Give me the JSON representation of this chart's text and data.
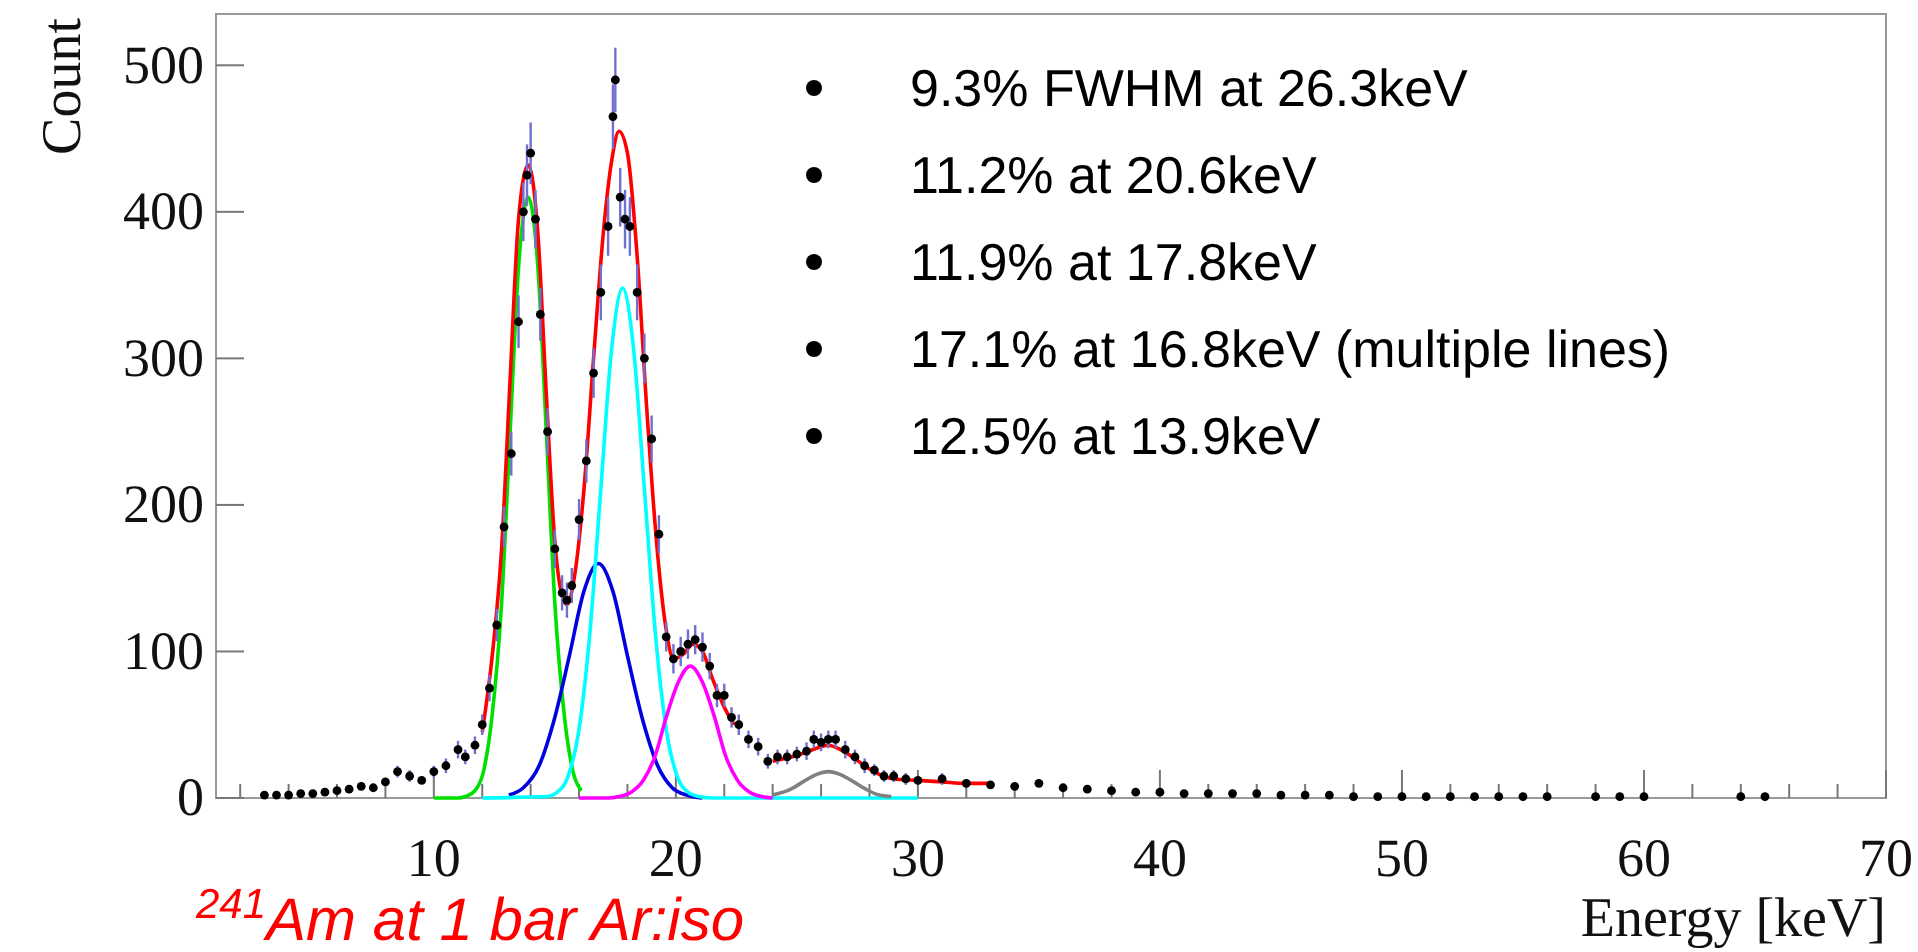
{
  "chart_data": {
    "type": "scatter",
    "xlabel": "Energy [keV]",
    "ylabel": "Count",
    "xlim": [
      1,
      70
    ],
    "ylim": [
      0,
      535
    ],
    "xticks": [
      {
        "value": 2,
        "label": null
      },
      {
        "value": 4,
        "label": null
      },
      {
        "value": 6,
        "label": null
      },
      {
        "value": 8,
        "label": null
      },
      10,
      {
        "value": 12,
        "label": null
      },
      {
        "value": 14,
        "label": null
      },
      {
        "value": 16,
        "label": null
      },
      {
        "value": 18,
        "label": null
      },
      20,
      {
        "value": 22,
        "label": null
      },
      {
        "value": 24,
        "label": null
      },
      {
        "value": 26,
        "label": null
      },
      {
        "value": 28,
        "label": null
      },
      30,
      {
        "value": 32,
        "label": null
      },
      {
        "value": 34,
        "label": null
      },
      {
        "value": 36,
        "label": null
      },
      {
        "value": 38,
        "label": null
      },
      40,
      {
        "value": 42,
        "label": null
      },
      {
        "value": 44,
        "label": null
      },
      {
        "value": 46,
        "label": null
      },
      {
        "value": 48,
        "label": null
      },
      50,
      {
        "value": 52,
        "label": null
      },
      {
        "value": 54,
        "label": null
      },
      {
        "value": 56,
        "label": null
      },
      {
        "value": 58,
        "label": null
      },
      60,
      {
        "value": 62,
        "label": null
      },
      {
        "value": 64,
        "label": null
      },
      {
        "value": 66,
        "label": null
      },
      {
        "value": 68,
        "label": null
      },
      70
    ],
    "yticks": [
      0,
      100,
      200,
      300,
      400,
      500
    ],
    "grid": false,
    "annotations": [
      "9.3% FWHM at 26.3keV",
      "11.2% at 20.6keV",
      "11.9% at 17.8keV",
      "17.1% at 16.8keV (multiple lines)",
      "12.5% at 13.9keV",
      "$^{241}$Am at 1 bar Ar:iso"
    ],
    "series": [
      {
        "type": "scatter",
        "color": "#000000",
        "marker": "circle",
        "x": [
          3,
          3.5,
          4,
          4.5,
          5,
          5.5,
          6,
          6.5,
          7,
          7.5,
          8,
          8.5,
          9,
          9.5,
          10,
          10.5,
          11,
          11.3,
          11.7,
          12,
          12.3,
          12.6,
          12.9,
          13.2,
          13.5,
          13.7,
          13.85,
          14,
          14.2,
          14.4,
          14.7,
          15,
          15.3,
          15.5,
          15.7,
          16,
          16.3,
          16.6,
          16.9,
          17.2,
          17.4,
          17.5,
          17.7,
          17.9,
          18.1,
          18.4,
          18.7,
          19,
          19.3,
          19.6,
          19.9,
          20.2,
          20.5,
          20.8,
          21.1,
          21.4,
          21.7,
          22,
          22.3,
          22.6,
          23,
          23.4,
          23.8,
          24.2,
          24.6,
          25,
          25.4,
          25.7,
          26,
          26.3,
          26.6,
          27,
          27.4,
          27.8,
          28.2,
          28.6,
          29,
          29.5,
          30,
          31,
          32,
          33,
          34,
          35,
          36,
          37,
          38,
          39,
          40,
          41,
          42,
          43,
          44,
          45,
          46,
          47,
          48,
          49,
          50,
          51,
          52,
          53,
          54,
          55,
          56,
          58,
          59,
          60,
          64,
          65
        ],
        "values": [
          2,
          2,
          2,
          3,
          3,
          4,
          5,
          6,
          8,
          7,
          11,
          18,
          15,
          12,
          18,
          22,
          33,
          28,
          36,
          50,
          75,
          118,
          185,
          235,
          325,
          400,
          425,
          440,
          395,
          330,
          250,
          170,
          140,
          135,
          145,
          190,
          230,
          290,
          345,
          390,
          465,
          490,
          410,
          395,
          390,
          345,
          300,
          245,
          180,
          110,
          95,
          100,
          105,
          108,
          103,
          90,
          70,
          70,
          55,
          50,
          40,
          35,
          25,
          28,
          28,
          30,
          32,
          40,
          38,
          40,
          40,
          33,
          28,
          22,
          19,
          15,
          15,
          13,
          12,
          13,
          10,
          9,
          8,
          10,
          7,
          6,
          5,
          4,
          4,
          3,
          3,
          3,
          3,
          2,
          2,
          2,
          1,
          1,
          1,
          1,
          1,
          1,
          1,
          1,
          1,
          1,
          1,
          1,
          1,
          1
        ],
        "errors": [
          1,
          1,
          1,
          2,
          2,
          2,
          2,
          2,
          null,
          null,
          null,
          4,
          4,
          null,
          4,
          5,
          6,
          5,
          6,
          7,
          9,
          11,
          14,
          15,
          18,
          20,
          21,
          21,
          20,
          18,
          16,
          13,
          12,
          12,
          12,
          14,
          15,
          17,
          19,
          20,
          22,
          22,
          20,
          20,
          20,
          19,
          17,
          16,
          13,
          10,
          10,
          10,
          10,
          10,
          10,
          9,
          8,
          8,
          7,
          7,
          6,
          6,
          5,
          5,
          5,
          5,
          6,
          6,
          6,
          6,
          6,
          6,
          5,
          5,
          4,
          4,
          4,
          4,
          null,
          4,
          null,
          null,
          null,
          null,
          null,
          2,
          2,
          2,
          2,
          2,
          2,
          2,
          2,
          1,
          1,
          1,
          1,
          1,
          1,
          1,
          1,
          1,
          1,
          1,
          1,
          1,
          1,
          1,
          1,
          1
        ]
      },
      {
        "type": "line",
        "color": "#00e000",
        "x": [
          10,
          11,
          11.3,
          11.7,
          12.05,
          12.4,
          12.8,
          13.15,
          13.5,
          13.9,
          14.3,
          14.65,
          15,
          15.4,
          15.75,
          16.1
        ],
        "values": [
          0,
          0,
          1,
          5,
          18,
          55,
          133,
          249,
          362,
          410,
          362,
          249,
          133,
          55,
          18,
          5
        ]
      },
      {
        "type": "line",
        "color": "#0000e0",
        "x": [
          13.1,
          13.7,
          14.35,
          14.95,
          15.6,
          16.2,
          16.8,
          17.4,
          18,
          18.65,
          19.25,
          19.85,
          20.45,
          21.1
        ],
        "values": [
          2,
          7,
          22,
          52,
          97,
          141,
          160,
          141,
          97,
          52,
          22,
          7,
          2,
          0
        ]
      },
      {
        "type": "line",
        "color": "#00ffff",
        "x": [
          12,
          14.65,
          15.1,
          15.55,
          16,
          16.45,
          16.9,
          17.35,
          17.8,
          18.25,
          18.7,
          19.15,
          19.6,
          20.05,
          20.5,
          20.95,
          21.5,
          30
        ],
        "values": [
          0,
          1,
          4,
          15,
          47,
          113,
          211,
          307,
          348,
          307,
          211,
          113,
          47,
          15,
          4,
          1,
          0,
          0
        ]
      },
      {
        "type": "line",
        "color": "#ff00ff",
        "x": [
          16,
          17.2,
          17.65,
          18.15,
          18.65,
          19.15,
          19.6,
          20.1,
          20.6,
          21.1,
          21.6,
          22.05,
          22.55,
          23.05,
          23.55,
          24
        ],
        "values": [
          0,
          0,
          1,
          4,
          12,
          29,
          55,
          79,
          90,
          79,
          55,
          29,
          12,
          4,
          1,
          0
        ]
      },
      {
        "type": "line",
        "color": "#808080",
        "x": [
          24,
          24.75,
          25.25,
          25.8,
          26.3,
          26.8,
          27.35,
          27.85,
          28.4,
          28.9
        ],
        "values": [
          2,
          6,
          11,
          16,
          18,
          16,
          11,
          6,
          2,
          1
        ]
      },
      {
        "type": "line",
        "color": "#ff0000",
        "x": [
          12,
          12.4,
          12.8,
          13.15,
          13.5,
          13.9,
          14.3,
          14.65,
          15,
          15.3,
          15.5,
          15.8,
          16.2,
          16.6,
          17,
          17.35,
          17.65,
          18,
          18.4,
          18.8,
          19.2,
          19.6,
          19.9,
          20.3,
          20.7,
          21.1,
          21.5,
          22,
          22.4,
          23,
          24,
          24.5,
          25,
          25.5,
          26,
          26.3,
          26.8,
          27.3,
          27.8,
          28.3,
          29,
          30,
          31,
          32,
          33
        ],
        "values": [
          45,
          95,
          170,
          285,
          395,
          432,
          385,
          275,
          175,
          138,
          132,
          150,
          210,
          300,
          385,
          435,
          455,
          440,
          370,
          265,
          175,
          115,
          95,
          98,
          105,
          100,
          82,
          62,
          50,
          null,
          25,
          27,
          29,
          32,
          35,
          36,
          33,
          28,
          22,
          17,
          13,
          12,
          11,
          10,
          10
        ]
      }
    ]
  }
}
